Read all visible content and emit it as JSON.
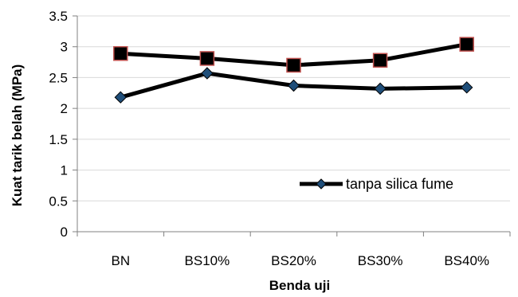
{
  "chart_data": {
    "type": "line",
    "categories": [
      "BN",
      "BS10%",
      "BS20%",
      "BS30%",
      "BS40%"
    ],
    "series": [
      {
        "name": "tanpa silica fume",
        "values": [
          2.18,
          2.57,
          2.37,
          2.32,
          2.34
        ],
        "marker": "diamond",
        "marker_color": "#1f4e79",
        "line_color": "#000000"
      },
      {
        "values": [
          2.89,
          2.81,
          2.7,
          2.78,
          3.04
        ],
        "marker": "square",
        "marker_color": "#000000",
        "marker_edge_color": "#c0504d",
        "line_color": "#000000"
      }
    ],
    "xlabel": "Benda uji",
    "ylabel": "Kuat tarik belah (MPa)",
    "ylim": [
      0,
      3.5
    ],
    "yticks": [
      "0",
      "0.5",
      "1",
      "1.5",
      "2",
      "2.5",
      "3",
      "3.5"
    ],
    "grid": "horizontal",
    "legend_position": "bottom-right"
  }
}
